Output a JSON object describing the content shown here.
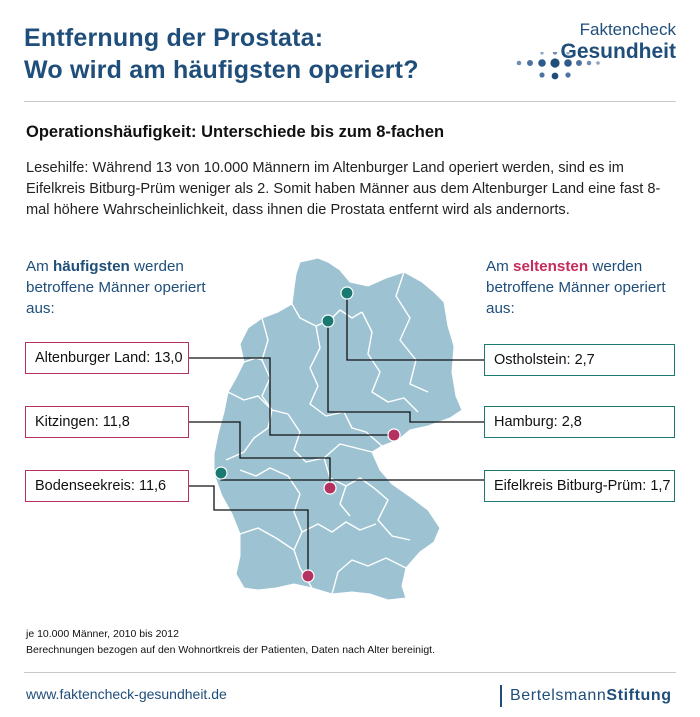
{
  "header": {
    "title_line1": "Entfernung der Prostata:",
    "title_line2": "Wo wird am häufigsten operiert?",
    "logo_line1": "Faktencheck",
    "logo_line2": "Gesundheit"
  },
  "subtitle": "Operationshäufigkeit: Unterschiede bis zum 8-fachen",
  "lesehilfe": "Lesehilfe: Während 13 von 10.000 Männern im Altenburger Land operiert werden, sind es im Eifelkreis Bitburg-Prüm weniger als 2. Somit haben Männer aus dem Altenburger Land eine fast 8-mal höhere Wahrscheinlichkeit, dass ihnen die Prostata entfernt wird als andernorts.",
  "left_heading": {
    "pre": "Am ",
    "emph": "häufigsten",
    "post": " werden betroffene Männer operiert aus:"
  },
  "right_heading": {
    "pre": "Am ",
    "emph": "seltensten",
    "post": " werden betroffene Männer operiert aus:"
  },
  "most_frequent": [
    {
      "label": "Altenburger Land: 13,0"
    },
    {
      "label": "Kitzingen: 11,8"
    },
    {
      "label": "Bodenseekreis: 11,6"
    }
  ],
  "least_frequent": [
    {
      "label": "Ostholstein: 2,7"
    },
    {
      "label": "Hamburg: 2,8"
    },
    {
      "label": "Eifelkreis Bitburg-Prüm: 1,7"
    }
  ],
  "colors": {
    "map_fill": "#9dc3d3",
    "high": "#b5315f",
    "low": "#1a7a72",
    "title": "#1f4e7a"
  },
  "footnote1": "je 10.000 Männer, 2010 bis 2012",
  "footnote2": "Berechnungen bezogen auf den Wohnortkreis der Patienten, Daten nach Alter bereinigt.",
  "footer": {
    "url": "www.faktencheck-gesundheit.de",
    "brand_regular": "Bertelsmann",
    "brand_bold": "Stiftung"
  }
}
